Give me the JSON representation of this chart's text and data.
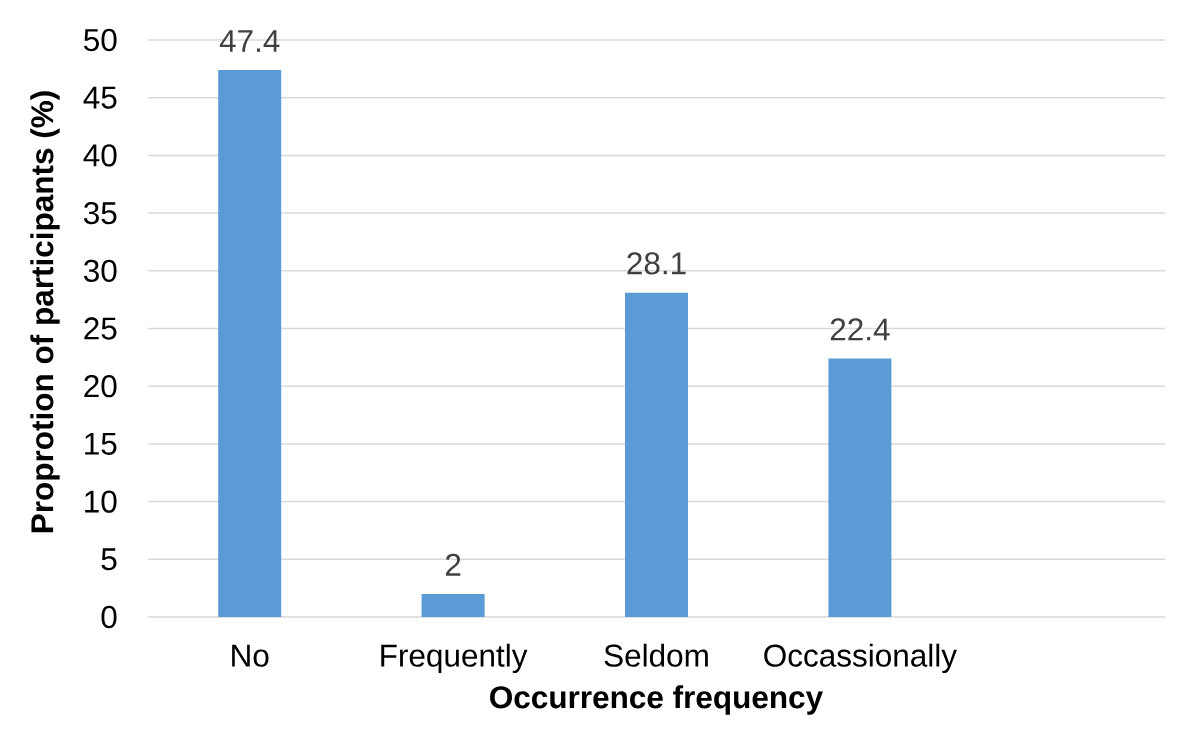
{
  "chart_data": {
    "type": "bar",
    "xlabel": "Occurrence frequency",
    "ylabel": "Proprotion of participants (%)",
    "categories": [
      "No",
      "Frequently",
      "Seldom",
      "Occassionally",
      null
    ],
    "values": [
      47.4,
      2,
      28.1,
      22.4,
      null
    ],
    "color": "#5b9bd5",
    "ylim": [
      0,
      50
    ],
    "yticks": [
      0,
      5,
      10,
      15,
      20,
      25,
      30,
      35,
      40,
      45,
      50
    ],
    "grid": "y",
    "data_labels": true
  }
}
